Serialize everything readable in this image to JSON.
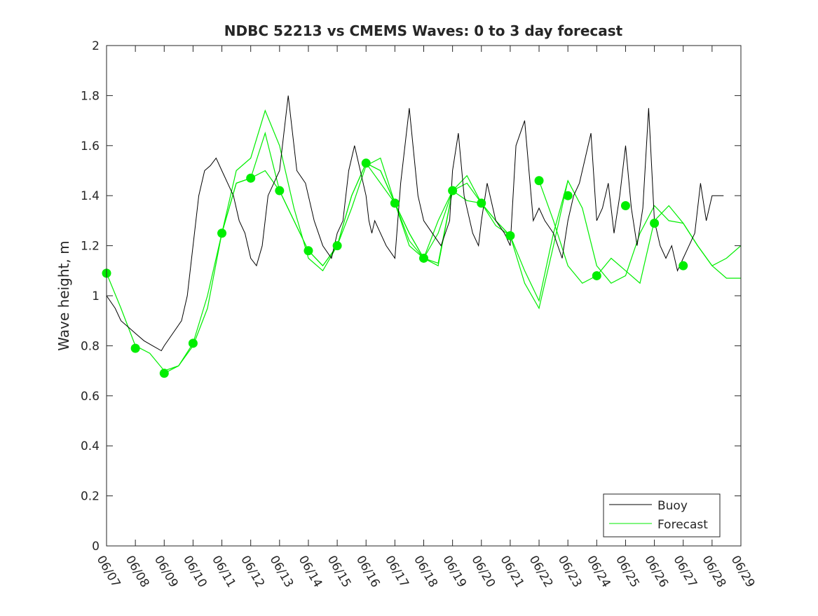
{
  "chart_data": {
    "type": "line",
    "title": "NDBC 52213 vs CMEMS Waves: 0 to 3 day forecast",
    "xlabel": "",
    "ylabel": "Wave height, m",
    "ylim": [
      0,
      2
    ],
    "yticks": [
      "0",
      "0.2",
      "0.4",
      "0.6",
      "0.8",
      "1",
      "1.2",
      "1.4",
      "1.6",
      "1.8",
      "2"
    ],
    "xticks": [
      "06/07",
      "06/08",
      "06/09",
      "06/10",
      "06/11",
      "06/12",
      "06/13",
      "06/14",
      "06/15",
      "06/16",
      "06/17",
      "06/18",
      "06/19",
      "06/20",
      "06/21",
      "06/22",
      "06/23",
      "06/24",
      "06/25",
      "06/26",
      "06/27",
      "06/28",
      "06/29"
    ],
    "grid": false,
    "legend": {
      "position": "bottom-right",
      "entries": [
        "Buoy",
        "Forecast"
      ]
    },
    "colors": {
      "buoy": "#000000",
      "forecast": "#00ee00",
      "axes": "#262626"
    },
    "buoy": {
      "name": "Buoy",
      "x": [
        0,
        0.3,
        0.5,
        0.8,
        1.0,
        1.3,
        1.6,
        1.9,
        2.0,
        2.3,
        2.6,
        2.8,
        3.0,
        3.2,
        3.4,
        3.6,
        3.8,
        4.0,
        4.2,
        4.4,
        4.6,
        4.8,
        5.0,
        5.2,
        5.4,
        5.6,
        5.8,
        6.0,
        6.3,
        6.6,
        6.9,
        7.2,
        7.5,
        7.8,
        8.0,
        8.2,
        8.4,
        8.6,
        8.8,
        9.0,
        9.1,
        9.2,
        9.3,
        9.5,
        9.7,
        10.0,
        10.2,
        10.5,
        10.8,
        11.0,
        11.3,
        11.6,
        11.9,
        12.0,
        12.2,
        12.4,
        12.7,
        12.9,
        13.0,
        13.2,
        13.5,
        13.8,
        14.0,
        14.2,
        14.5,
        14.8,
        15.0,
        15.2,
        15.5,
        15.8,
        16.0,
        16.2,
        16.4,
        16.6,
        16.8,
        17.0,
        17.2,
        17.4,
        17.6,
        17.8,
        18.0,
        18.2,
        18.4,
        18.6,
        18.8,
        19.0,
        19.2,
        19.4,
        19.6,
        19.8,
        20.0,
        20.2,
        20.4,
        20.6,
        20.8,
        21.0,
        21.2,
        21.4
      ],
      "y": [
        1.0,
        0.95,
        0.9,
        0.87,
        0.85,
        0.82,
        0.8,
        0.78,
        0.8,
        0.85,
        0.9,
        1.0,
        1.2,
        1.4,
        1.5,
        1.52,
        1.55,
        1.5,
        1.45,
        1.4,
        1.3,
        1.25,
        1.15,
        1.12,
        1.2,
        1.4,
        1.45,
        1.5,
        1.8,
        1.5,
        1.45,
        1.3,
        1.2,
        1.15,
        1.25,
        1.3,
        1.5,
        1.6,
        1.5,
        1.4,
        1.3,
        1.25,
        1.3,
        1.25,
        1.2,
        1.15,
        1.45,
        1.75,
        1.4,
        1.3,
        1.25,
        1.2,
        1.3,
        1.5,
        1.65,
        1.4,
        1.25,
        1.2,
        1.3,
        1.45,
        1.3,
        1.25,
        1.2,
        1.6,
        1.7,
        1.3,
        1.35,
        1.3,
        1.25,
        1.15,
        1.3,
        1.4,
        1.45,
        1.55,
        1.65,
        1.3,
        1.35,
        1.45,
        1.25,
        1.4,
        1.6,
        1.35,
        1.2,
        1.35,
        1.75,
        1.3,
        1.2,
        1.15,
        1.2,
        1.1,
        1.15,
        1.2,
        1.25,
        1.45,
        1.3,
        1.4,
        1.4,
        1.4
      ]
    },
    "forecast": {
      "name": "Forecast",
      "runs": [
        {
          "x": [
            0,
            0.5,
            1,
            1.5,
            2,
            2.5,
            3,
            3.5,
            4,
            4.5,
            5,
            5.5,
            6,
            6.5,
            7,
            7.5,
            8,
            8.5,
            9,
            9.5,
            10,
            10.5,
            11,
            11.5,
            12
          ],
          "y": [
            1.09,
            0.95,
            0.8,
            0.77,
            0.7,
            0.72,
            0.8,
            0.95,
            1.25,
            1.45,
            1.47,
            1.5,
            1.42,
            1.3,
            1.18,
            1.12,
            1.2,
            1.35,
            1.52,
            1.55,
            1.37,
            1.25,
            1.15,
            1.13,
            1.42
          ]
        },
        {
          "x": [
            2,
            2.5,
            3,
            3.5,
            4,
            4.5,
            5,
            5.5,
            6,
            6.5,
            7,
            7.5,
            8,
            8.5,
            9,
            9.5,
            10,
            10.5,
            11,
            11.5,
            12,
            12.5,
            13,
            13.5,
            14
          ],
          "y": [
            0.69,
            0.72,
            0.81,
            1.0,
            1.25,
            1.5,
            1.55,
            1.74,
            1.6,
            1.35,
            1.15,
            1.1,
            1.2,
            1.4,
            1.53,
            1.45,
            1.37,
            1.25,
            1.15,
            1.12,
            1.42,
            1.38,
            1.37,
            1.3,
            1.24
          ]
        },
        {
          "x": [
            4,
            4.5,
            5,
            5.5,
            6,
            6.5,
            7,
            7.5,
            8,
            8.5,
            9,
            9.5,
            10,
            10.5,
            11,
            11.5,
            12,
            12.5,
            13,
            13.5,
            14,
            14.5,
            15,
            15.5,
            16
          ],
          "y": [
            1.25,
            1.45,
            1.47,
            1.65,
            1.42,
            1.3,
            1.18,
            1.12,
            1.2,
            1.4,
            1.53,
            1.5,
            1.37,
            1.2,
            1.15,
            1.3,
            1.42,
            1.45,
            1.37,
            1.28,
            1.24,
            1.05,
            0.95,
            1.2,
            1.46
          ]
        },
        {
          "x": [
            9,
            9.5,
            10,
            10.5,
            11,
            11.5,
            12,
            12.5,
            13,
            13.5,
            14,
            14.5,
            15,
            15.5,
            16,
            16.5,
            17,
            17.5,
            18,
            18.5,
            19,
            19.5,
            20,
            20.5,
            21,
            21.5,
            22
          ],
          "y": [
            1.53,
            1.5,
            1.37,
            1.22,
            1.15,
            1.25,
            1.42,
            1.48,
            1.37,
            1.3,
            1.24,
            1.1,
            0.98,
            1.25,
            1.46,
            1.35,
            1.12,
            1.05,
            1.08,
            1.25,
            1.36,
            1.3,
            1.29,
            1.2,
            1.12,
            1.15,
            1.2
          ]
        },
        {
          "x": [
            15,
            15.5,
            16,
            16.5,
            17,
            17.5,
            18,
            18.5,
            19,
            19.5,
            20,
            20.5,
            21,
            21.5,
            22
          ],
          "y": [
            1.46,
            1.3,
            1.12,
            1.05,
            1.08,
            1.15,
            1.1,
            1.05,
            1.3,
            1.36,
            1.29,
            1.2,
            1.12,
            1.07,
            1.07
          ]
        }
      ],
      "markers": {
        "x": [
          0,
          1,
          2,
          3,
          4,
          5,
          6,
          7,
          8,
          9,
          10,
          11,
          12,
          13,
          14,
          15,
          16,
          17,
          18,
          19,
          20
        ],
        "y": [
          1.09,
          0.79,
          0.69,
          0.81,
          1.25,
          1.47,
          1.42,
          1.18,
          1.2,
          1.53,
          1.37,
          1.15,
          1.42,
          1.37,
          1.24,
          1.46,
          1.4,
          1.08,
          1.36,
          1.29,
          1.12
        ]
      }
    }
  }
}
